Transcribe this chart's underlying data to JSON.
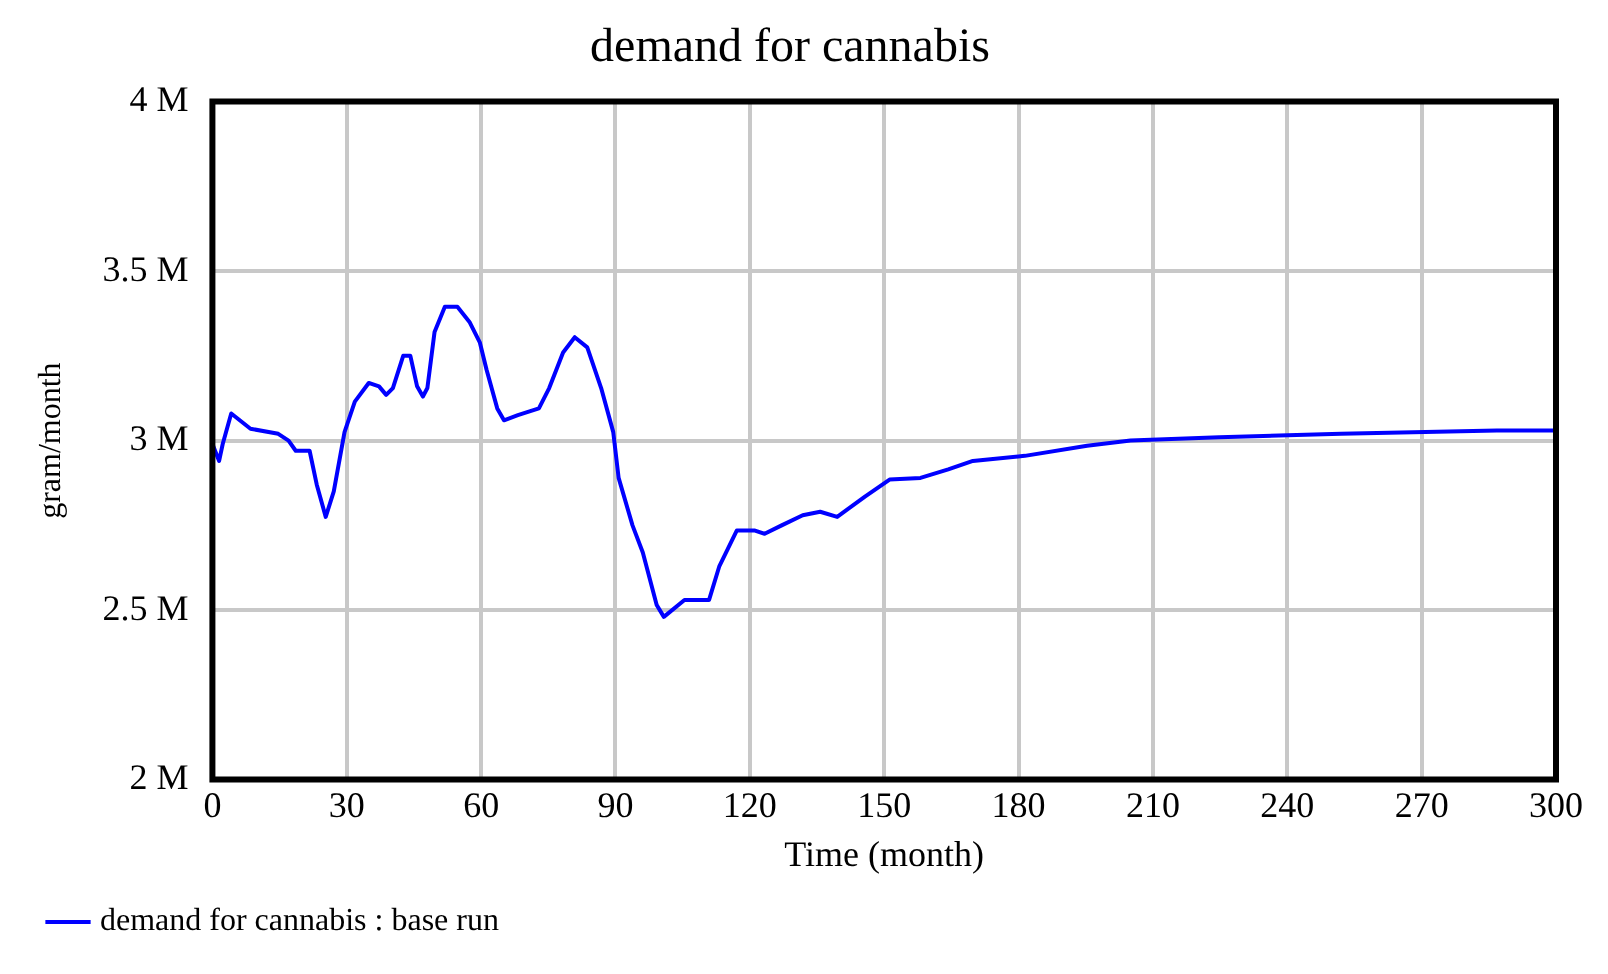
{
  "chart_data": {
    "type": "line",
    "title": "demand for cannabis",
    "xlabel": "Time (month)",
    "ylabel": "gram/month",
    "x": [
      0,
      1.5,
      2.3,
      4.2,
      8.5,
      14.7,
      17,
      18.6,
      21.7,
      23.3,
      25.3,
      27.1,
      29.5,
      31.8,
      34.9,
      37.2,
      38.8,
      40.3,
      42.6,
      44.2,
      45.7,
      47,
      48,
      49.6,
      51.9,
      54.7,
      57.4,
      59.7,
      61.2,
      63.6,
      65.1,
      68.2,
      72.9,
      75.2,
      78.3,
      80.9,
      83.7,
      86.8,
      89.5,
      90.7,
      93.8,
      96.1,
      99.2,
      100.8,
      105.4,
      110.9,
      113.2,
      117.1,
      121,
      123.3,
      127.1,
      131.8,
      135.7,
      139.5,
      145.7,
      151.2,
      158.1,
      164.3,
      169.8,
      181.4,
      195.3,
      205,
      224.8,
      252,
      286.8,
      300
    ],
    "series": [
      {
        "name": "demand for cannabis : base run",
        "color": "#0000ff",
        "values": [
          2990000,
          2940000,
          2990000,
          3080000,
          3035000,
          3020000,
          3000000,
          2970000,
          2970000,
          2870000,
          2775000,
          2850000,
          3025000,
          3115000,
          3170000,
          3160000,
          3135000,
          3155000,
          3250000,
          3250000,
          3160000,
          3130000,
          3155000,
          3320000,
          3395000,
          3395000,
          3350000,
          3290000,
          3210000,
          3095000,
          3060000,
          3075000,
          3095000,
          3155000,
          3260000,
          3305000,
          3275000,
          3155000,
          3025000,
          2890000,
          2750000,
          2670000,
          2515000,
          2480000,
          2530000,
          2530000,
          2630000,
          2735000,
          2735000,
          2725000,
          2750000,
          2780000,
          2790000,
          2775000,
          2835000,
          2885000,
          2890000,
          2915000,
          2940000,
          2955000,
          2985000,
          3000000,
          3010000,
          3020000,
          3030000,
          3030000
        ]
      }
    ],
    "xlim": [
      0,
      300
    ],
    "xticks": [
      0,
      30,
      60,
      90,
      120,
      150,
      180,
      210,
      240,
      270,
      300
    ],
    "ylim": [
      2000000,
      4000000
    ],
    "yticks": [
      {
        "value": 2000000,
        "label": "2 M"
      },
      {
        "value": 2500000,
        "label": "2.5 M"
      },
      {
        "value": 3000000,
        "label": "3 M"
      },
      {
        "value": 3500000,
        "label": "3.5 M"
      },
      {
        "value": 4000000,
        "label": "4 M"
      }
    ],
    "grid": true,
    "legend": "bottom",
    "marker": "none",
    "line_style": "solid"
  }
}
